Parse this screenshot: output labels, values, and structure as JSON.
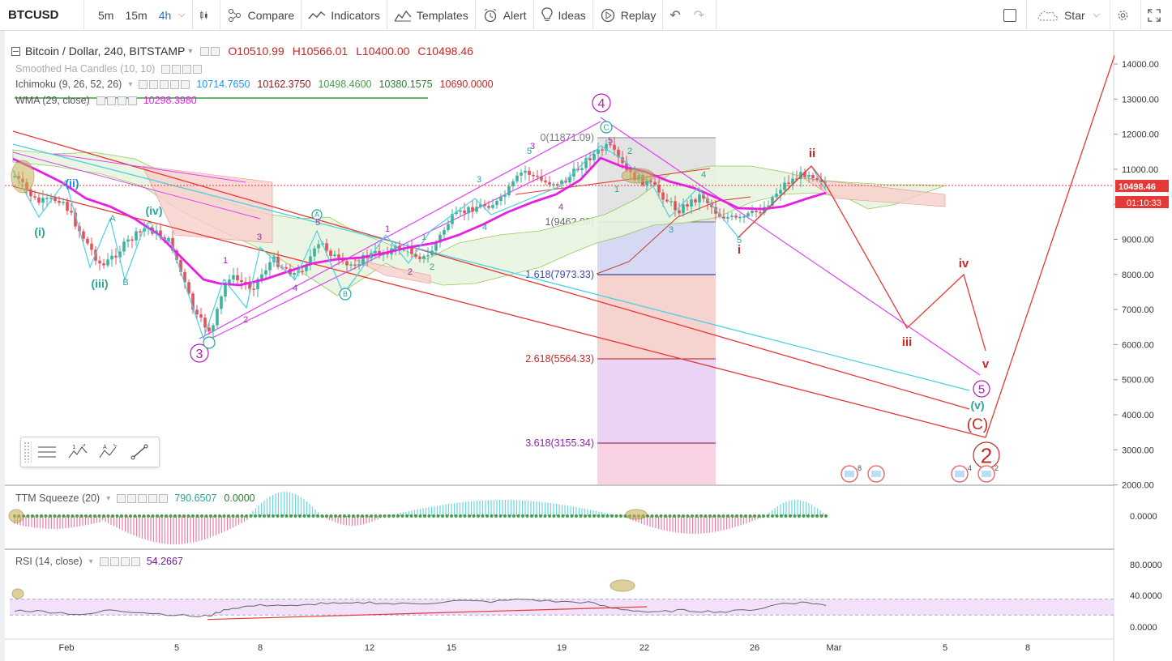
{
  "toolbar": {
    "symbol": "BTCUSD",
    "intervals": [
      "5m",
      "15m",
      "4h"
    ],
    "active_interval": "4h",
    "compare": "Compare",
    "indicators": "Indicators",
    "templates": "Templates",
    "alert": "Alert",
    "ideas": "Ideas",
    "replay": "Replay",
    "star": "Star"
  },
  "legend": {
    "title": "Bitcoin / Dollar, 240, BITSTAMP",
    "ohlc": [
      "O10510.99",
      "H10566.01",
      "L10400.00",
      "C10498.46"
    ],
    "ha_candles": "Smoothed Ha Candles (10, 10)",
    "ichimoku": {
      "label": "Ichimoku (9, 26, 52, 26)",
      "values": [
        "10714.7650",
        "10162.3750",
        "10498.4600",
        "10380.1575",
        "10690.0000"
      ]
    },
    "wma": {
      "label": "WMA (29, close)",
      "value": "10298.3980"
    },
    "ttm": {
      "label": "TTM Squeeze (20)",
      "values": [
        "790.6507",
        "0.0000"
      ]
    },
    "rsi": {
      "label": "RSI (14, close)",
      "value": "54.2667"
    }
  },
  "price_axis": {
    "ticks": [
      "14000.00",
      "13000.00",
      "12000.00",
      "11000.00",
      "10000.00",
      "9000.00",
      "8000.00",
      "7000.00",
      "6000.00",
      "5000.00",
      "4000.00",
      "3000.00",
      "2000.00"
    ],
    "last_price": "10498.46",
    "countdown": "01:10:33"
  },
  "ttm_axis": [
    "0.0000"
  ],
  "rsi_axis": [
    "80.0000",
    "40.0000",
    "0.0000"
  ],
  "time_axis": [
    "Feb",
    "5",
    "8",
    "12",
    "15",
    "19",
    "22",
    "26",
    "Mar",
    "5",
    "8"
  ],
  "fib": {
    "levels": [
      "0(11871.09)",
      "1(9462.09)",
      "1.618(7973.33)",
      "2.618(5564.33)",
      "3.618(3155.34)"
    ]
  },
  "wave_labels": {
    "big": [
      "4",
      "3",
      "5",
      "2"
    ],
    "red_count": [
      "ii",
      "i",
      "iii",
      "iv",
      "v",
      "(C)"
    ],
    "cyan_count": [
      "(i)",
      "(ii)",
      "(iii)",
      "(iv)",
      "(v)"
    ],
    "abc": [
      "A",
      "B",
      "C",
      "A",
      "B",
      "C"
    ]
  },
  "events": [
    "8",
    "4",
    "2"
  ],
  "colors": {
    "up": "#26a69a",
    "down": "#ef5350",
    "wma": "#e91ee5",
    "fib_channel": "#2ecbe0",
    "wave_red": "#c62828",
    "wave_purple": "#b020b0",
    "cloud_green": "#a5d6a7",
    "cloud_red": "#f5b7b1"
  }
}
